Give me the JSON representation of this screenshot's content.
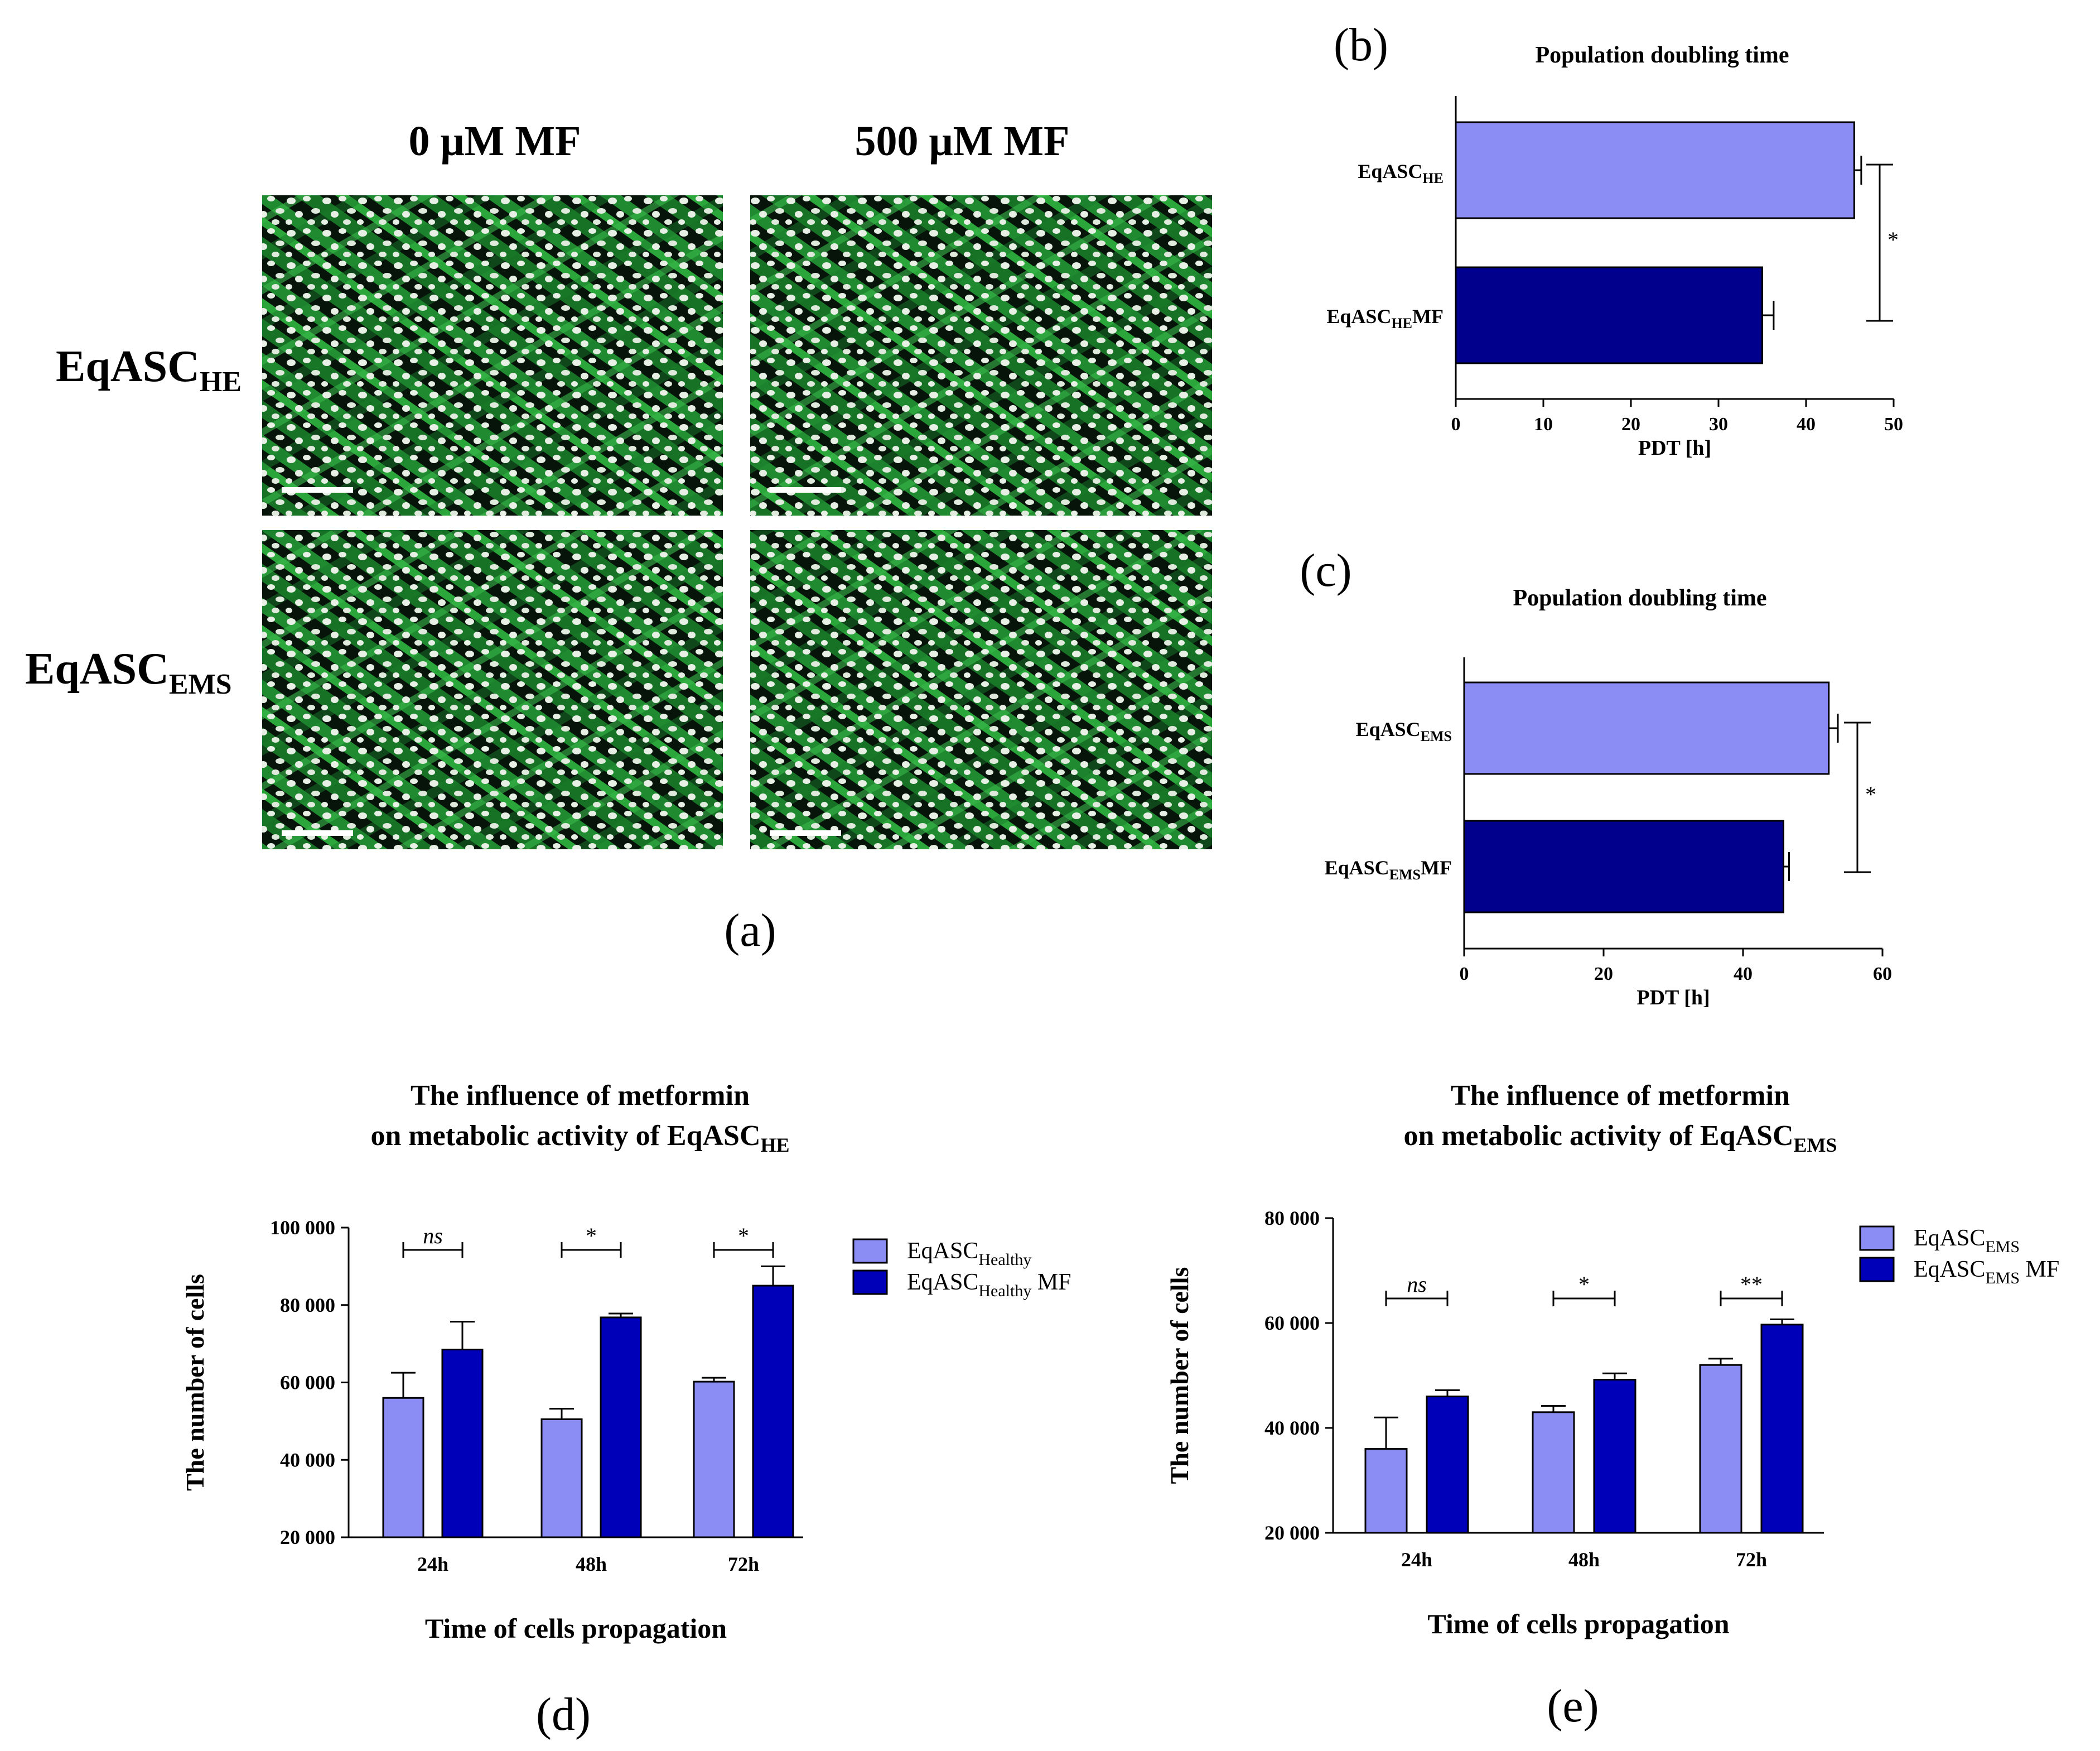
{
  "colors": {
    "light_bar": "#8c8cf5",
    "dark_bar": "#00008c",
    "dark_bar_group": "#0000b8",
    "micro_green": "#2aa63a",
    "micro_nucleus": "#e8f0e6"
  },
  "panel_a": {
    "label": "(a)",
    "col_headers": [
      "0 μM MF",
      "500 μM MF"
    ],
    "row_labels": [
      {
        "base": "EqASC",
        "sub": "HE"
      },
      {
        "base": "EqASC",
        "sub": "EMS"
      }
    ]
  },
  "chart_data": [
    {
      "id": "b",
      "panel_label": "(b)",
      "type": "bar",
      "orientation": "horizontal",
      "title": "Population doubling time",
      "xlabel": "PDT [h]",
      "categories": [
        {
          "base": "EqASC",
          "sub": "HE",
          "suffix": ""
        },
        {
          "base": "EqASC",
          "sub": "HE",
          "suffix": "MF"
        }
      ],
      "values": [
        45.5,
        35
      ],
      "errors": [
        0.8,
        1.3
      ],
      "xlim": [
        0,
        50
      ],
      "xticks": [
        "0",
        "10",
        "20",
        "30",
        "40",
        "50"
      ],
      "significance": "*"
    },
    {
      "id": "c",
      "panel_label": "(c)",
      "type": "bar",
      "orientation": "horizontal",
      "title": "Population doubling time",
      "xlabel": "PDT [h]",
      "categories": [
        {
          "base": "EqASC",
          "sub": "EMS",
          "suffix": ""
        },
        {
          "base": "EqASC",
          "sub": "EMS",
          "suffix": "MF"
        }
      ],
      "values": [
        52.3,
        45.8
      ],
      "errors": [
        1.3,
        0.8
      ],
      "xlim": [
        0,
        60
      ],
      "xticks": [
        "0",
        "20",
        "40",
        "60"
      ],
      "significance": "*"
    },
    {
      "id": "d",
      "panel_label": "(d)",
      "type": "bar",
      "orientation": "vertical",
      "title_line1": "The influence of metformin",
      "title_line2_base": "on metabolic activity of EqASC",
      "title_line2_sub": "HE",
      "xlabel": "Time of cells propagation",
      "ylabel": "The number of cells",
      "categories": [
        "24h",
        "48h",
        "72h"
      ],
      "ylim": [
        20000,
        100000
      ],
      "yticks": [
        "20 000",
        "40 000",
        "60 000",
        "80 000",
        "100 000"
      ],
      "series": [
        {
          "legend_base": "EqASC",
          "legend_sub": "Healthy",
          "legend_suffix": "",
          "values": [
            56000,
            50500,
            60200
          ],
          "errors": [
            6500,
            2700,
            1000
          ]
        },
        {
          "legend_base": "EqASC",
          "legend_sub": "Healthy",
          "legend_suffix": " MF",
          "values": [
            68500,
            76800,
            85000
          ],
          "errors": [
            7200,
            1000,
            5000
          ]
        }
      ],
      "significance": [
        "ns",
        "*",
        "*"
      ]
    },
    {
      "id": "e",
      "panel_label": "(e)",
      "type": "bar",
      "orientation": "vertical",
      "title_line1": "The influence of metformin",
      "title_line2_base": "on metabolic activity of EqASC",
      "title_line2_sub": "EMS",
      "xlabel": "Time of cells propagation",
      "ylabel": "The number of cells",
      "categories": [
        "24h",
        "48h",
        "72h"
      ],
      "ylim": [
        20000,
        80000
      ],
      "yticks": [
        "20 000",
        "40 000",
        "60 000",
        "80 000"
      ],
      "series": [
        {
          "legend_base": "EqASC",
          "legend_sub": "EMS",
          "legend_suffix": "",
          "values": [
            36000,
            43000,
            52000
          ],
          "errors": [
            6000,
            1200,
            1200
          ]
        },
        {
          "legend_base": "EqASC",
          "legend_sub": "EMS",
          "legend_suffix": " MF",
          "values": [
            46000,
            49200,
            59700
          ],
          "errors": [
            1200,
            1200,
            1000
          ]
        }
      ],
      "significance": [
        "ns",
        "*",
        "**"
      ]
    }
  ]
}
